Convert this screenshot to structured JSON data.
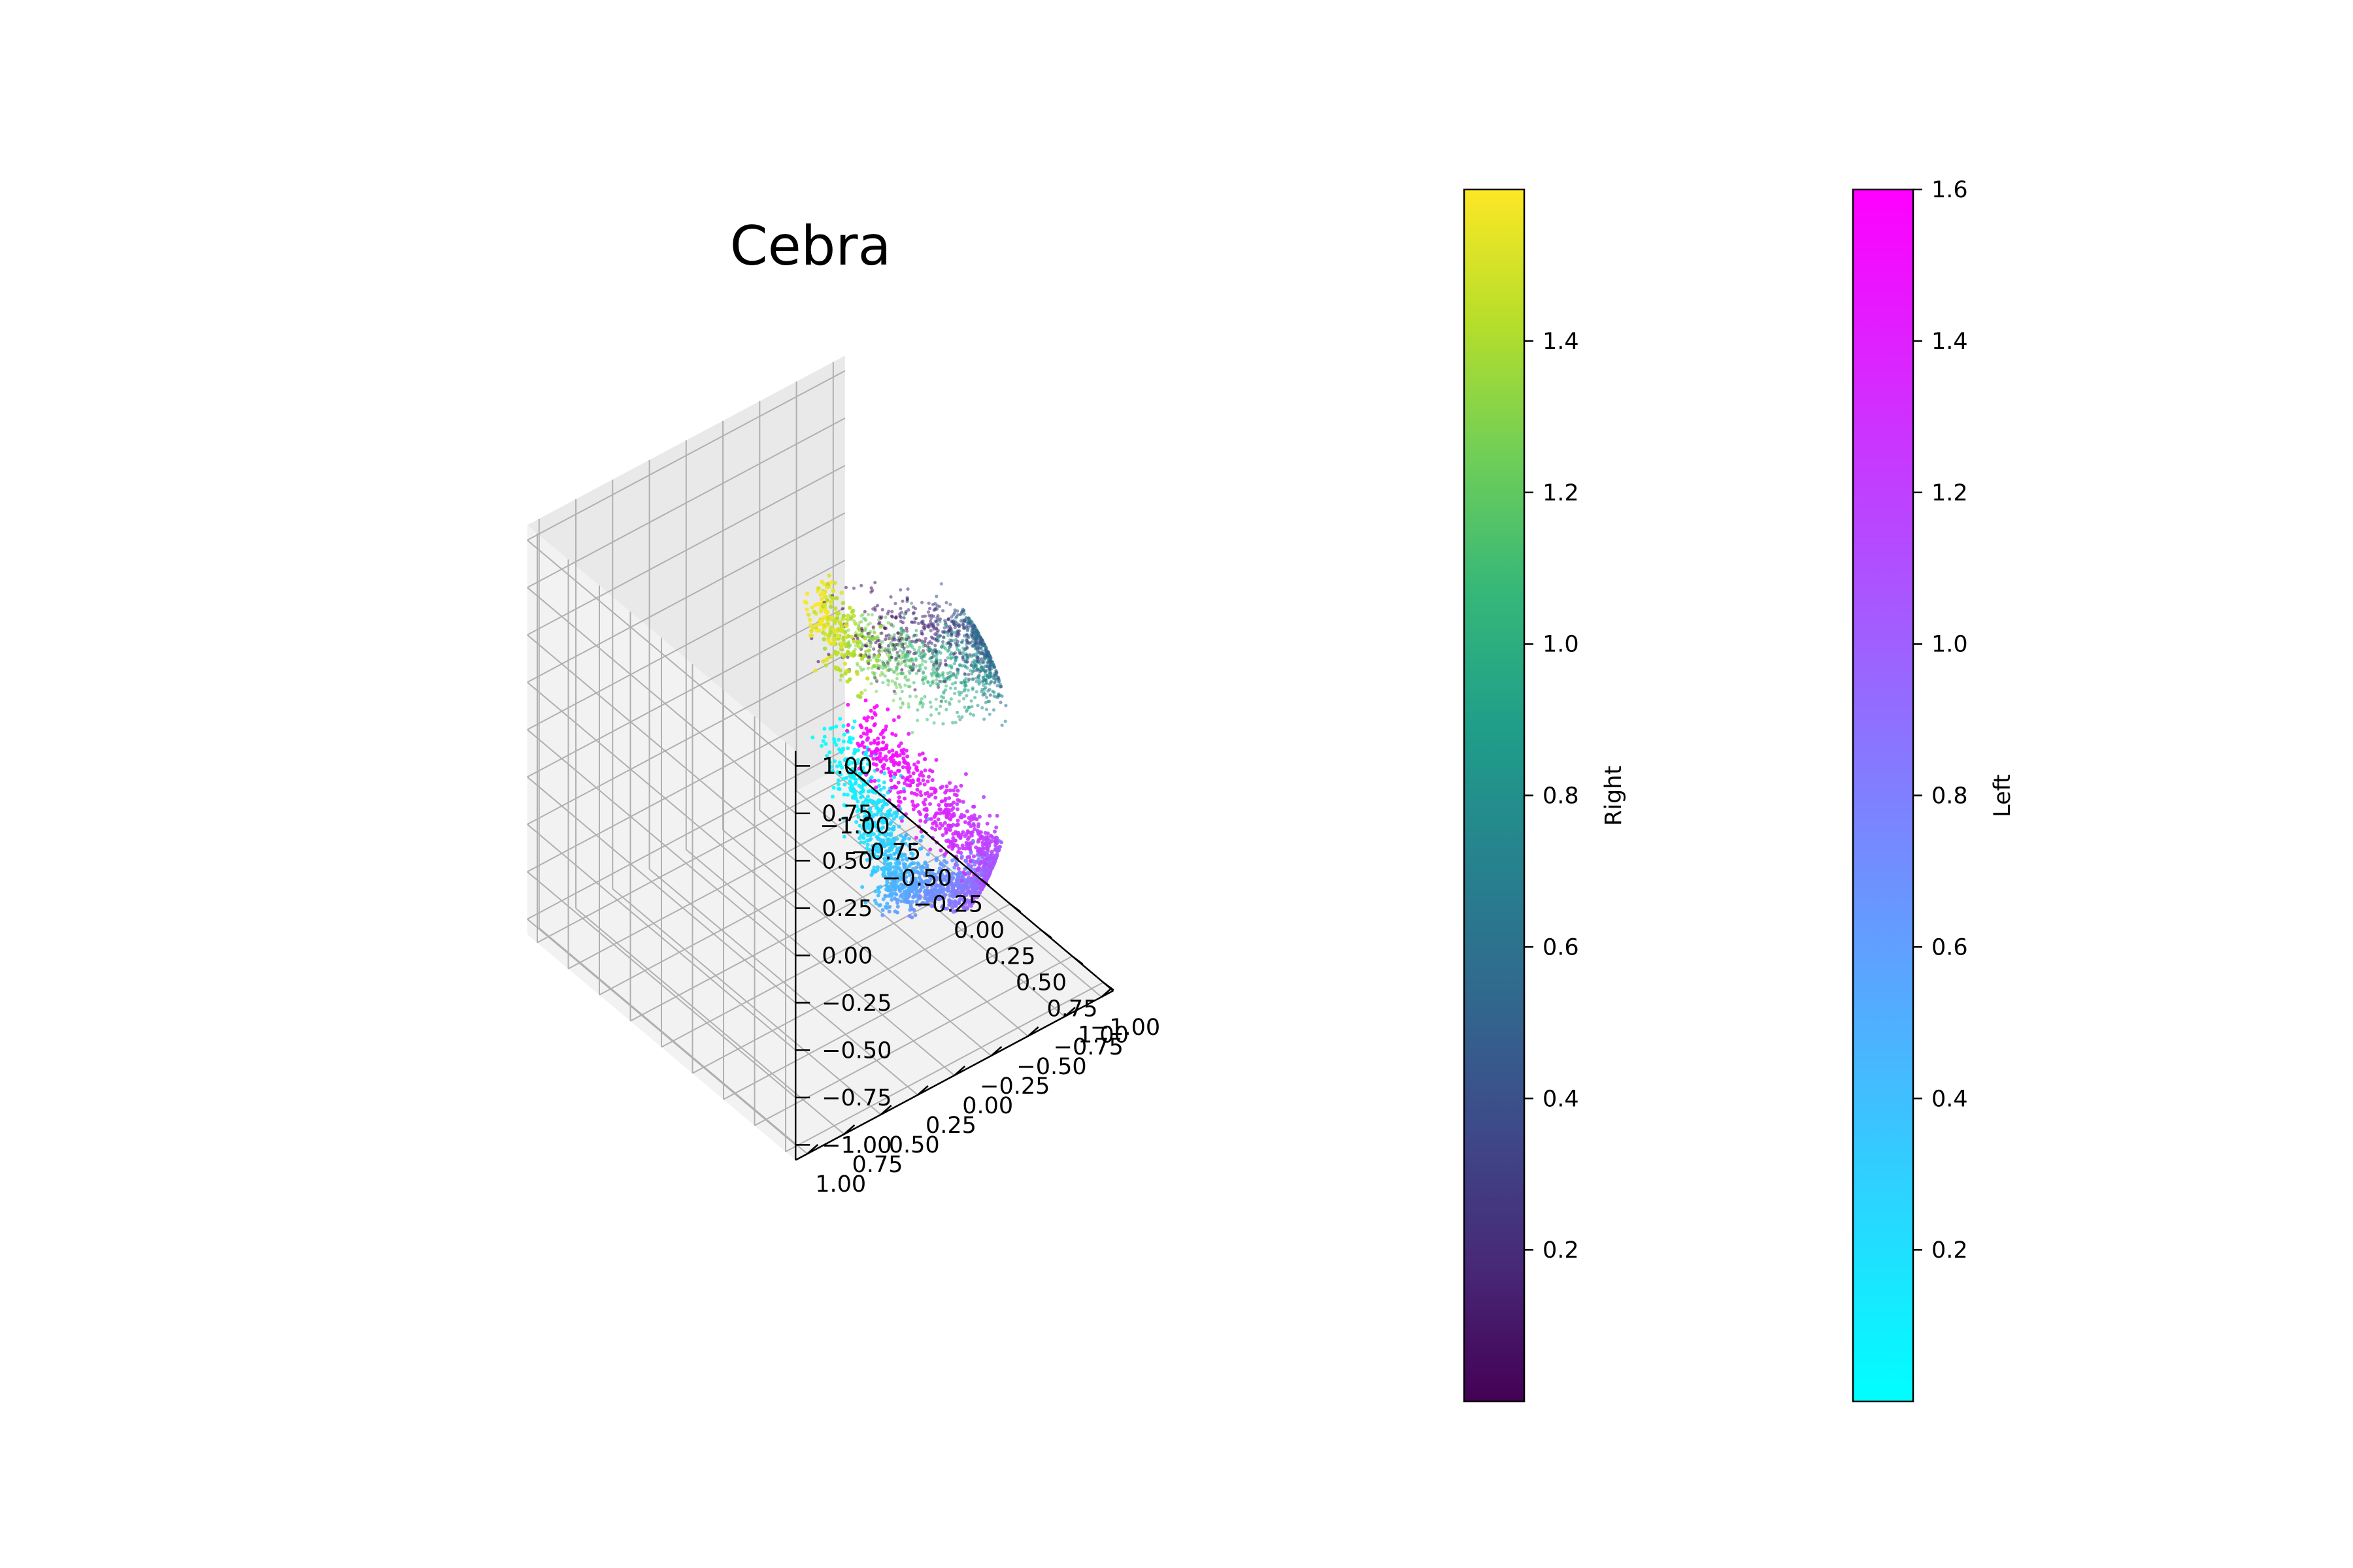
{
  "chart_data": {
    "type": "scatter",
    "title": "Cebra",
    "projection": "3d",
    "axes": {
      "x": {
        "range": [
          -1.0,
          1.0
        ],
        "ticks": [
          "−1.00",
          "−0.75",
          "−0.50",
          "−0.25",
          "0.00",
          "0.25",
          "0.50",
          "0.75",
          "1.00"
        ]
      },
      "y": {
        "range": [
          -1.0,
          1.0
        ],
        "ticks": [
          "−1.00",
          "−0.75",
          "−0.50",
          "−0.25",
          "0.00",
          "0.25",
          "0.50",
          "0.75",
          "1.00"
        ]
      },
      "z": {
        "range": [
          -1.0,
          1.0
        ],
        "ticks": [
          "−1.00",
          "−0.75",
          "−0.50",
          "−0.25",
          "0.00",
          "0.25",
          "0.50",
          "0.75",
          "1.00"
        ]
      }
    },
    "grid": true,
    "series": [
      {
        "name": "Right",
        "colormap": "viridis",
        "value_range": [
          0.0,
          1.6
        ]
      },
      {
        "name": "Left",
        "colormap": "cool",
        "value_range": [
          0.0,
          1.6
        ]
      }
    ],
    "colorbars": [
      {
        "label": "Right",
        "colormap": "viridis",
        "tick_values": [
          0.2,
          0.4,
          0.6,
          0.8,
          1.0,
          1.2,
          1.4
        ],
        "tick_labels": [
          "0.2",
          "0.4",
          "0.6",
          "0.8",
          "1.0",
          "1.2",
          "1.4"
        ],
        "range": [
          0.0,
          1.6
        ]
      },
      {
        "label": "Left",
        "colormap": "cool",
        "tick_values": [
          0.2,
          0.4,
          0.6,
          0.8,
          1.0,
          1.2,
          1.4,
          1.6
        ],
        "tick_labels": [
          "0.2",
          "0.4",
          "0.6",
          "0.8",
          "1.0",
          "1.2",
          "1.4",
          "1.6"
        ],
        "range": [
          0.0,
          1.6
        ]
      }
    ],
    "colors": {
      "viridis": [
        "#440154",
        "#482878",
        "#3e4989",
        "#31688e",
        "#26828e",
        "#1f9e89",
        "#35b779",
        "#6ece58",
        "#b5de2b",
        "#fde725"
      ],
      "cool": [
        "#00ffff",
        "#ff00ff"
      ],
      "pane": "#f2f2f2",
      "pane_side": "#e9e9e9",
      "grid": "#b0b0b0"
    }
  }
}
